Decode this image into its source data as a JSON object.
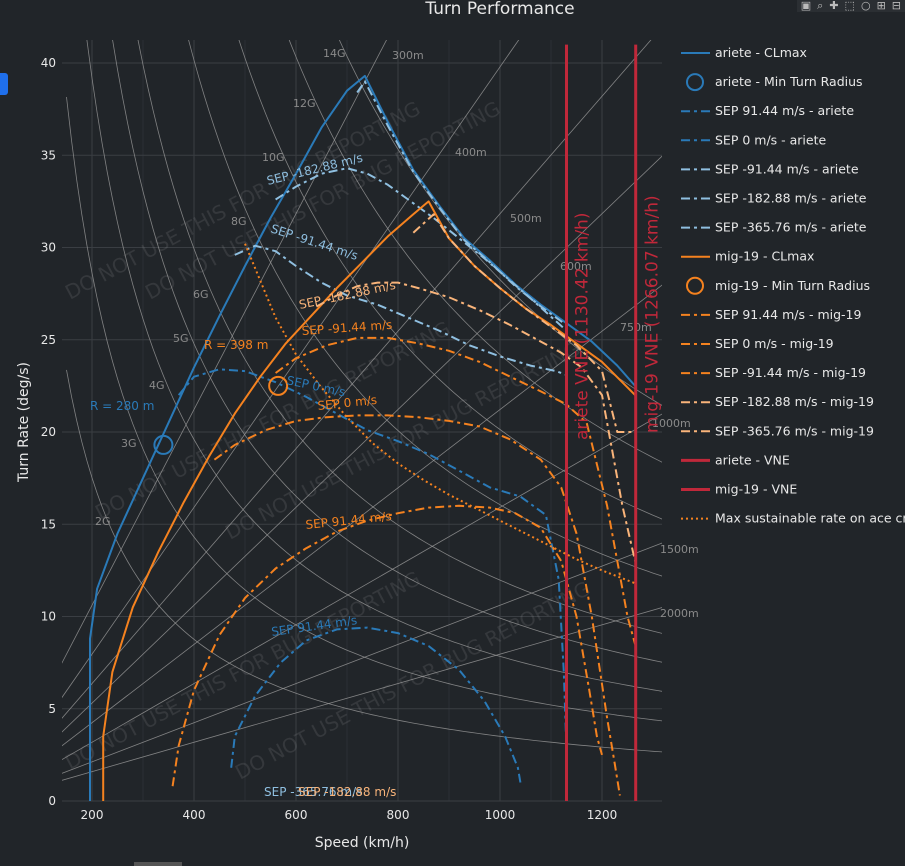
{
  "modebar": {
    "icons": [
      "camera-icon",
      "zoom-icon",
      "pan-icon",
      "select-icon",
      "lasso-icon",
      "zoom-in-icon",
      "zoom-out-icon"
    ]
  },
  "colors": {
    "ariete": "#2a7ab8",
    "ariete_light": "#8fbfe0",
    "mig19": "#f5821f",
    "mig19_light": "#f9b47a",
    "vne": "#c0283a",
    "grid": "#3a3e43",
    "bg": "#212529",
    "text": "#e8e8e8",
    "watermark": "rgba(255,255,255,0.09)",
    "radial": "#9a9a9a"
  },
  "chart_data": {
    "type": "line",
    "title": "Turn Performance",
    "xlabel": "Speed (km/h)",
    "ylabel": "Turn Rate (deg/s)",
    "xlim": [
      150,
      1320
    ],
    "ylim": [
      0,
      41
    ],
    "xticks": [
      200,
      400,
      600,
      800,
      1000,
      1200
    ],
    "yticks": [
      0,
      5,
      10,
      15,
      20,
      25,
      30,
      35,
      40
    ],
    "grid": true,
    "legend_position": "right",
    "watermark": "DO NOT USE THIS FOR BUG REPORTING",
    "g_lines": [
      {
        "label": "2G",
        "g": 2
      },
      {
        "label": "3G",
        "g": 3
      },
      {
        "label": "4G",
        "g": 4
      },
      {
        "label": "5G",
        "g": 5
      },
      {
        "label": "6G",
        "g": 6
      },
      {
        "label": "8G",
        "g": 8
      },
      {
        "label": "10G",
        "g": 10
      },
      {
        "label": "12G",
        "g": 12
      },
      {
        "label": "14G",
        "g": 14
      }
    ],
    "radius_lines": [
      {
        "label": "300m",
        "r": 300
      },
      {
        "label": "400m",
        "r": 400
      },
      {
        "label": "500m",
        "r": 500
      },
      {
        "label": "600m",
        "r": 600
      },
      {
        "label": "750m",
        "r": 750
      },
      {
        "label": "1000m",
        "r": 1000
      },
      {
        "label": "1500m",
        "r": 1500
      },
      {
        "label": "2000m",
        "r": 2000
      }
    ],
    "series": [
      {
        "name": "ariete - CLmax",
        "color_key": "ariete",
        "dash": "solid",
        "x": [
          196,
          196,
          210,
          250,
          300,
          350,
          400,
          450,
          500,
          550,
          600,
          650,
          700,
          735,
          780,
          830,
          880,
          930,
          980,
          1030,
          1080,
          1130,
          1180,
          1230,
          1265
        ],
        "y": [
          0,
          8.8,
          11.5,
          14.5,
          17.5,
          20.5,
          23.5,
          26.3,
          29.0,
          31.6,
          34.0,
          36.5,
          38.5,
          39.3,
          36.8,
          34.2,
          32.3,
          30.5,
          29.3,
          28.0,
          26.9,
          25.9,
          24.9,
          23.6,
          22.5
        ]
      },
      {
        "name": "ariete - Min Turn Radius",
        "color_key": "ariete",
        "marker": "circle",
        "x": [
          340
        ],
        "y": [
          19.3
        ],
        "annotation": "R = 280 m"
      },
      {
        "name": "SEP 91.44 m/s - ariete",
        "color_key": "ariete",
        "dash": "dashdot",
        "x": [
          473,
          480,
          520,
          570,
          620,
          680,
          740,
          800,
          860,
          920,
          970,
          1010,
          1035,
          1040
        ],
        "y": [
          1.8,
          3.5,
          5.7,
          7.5,
          8.7,
          9.3,
          9.4,
          9.1,
          8.4,
          7.1,
          5.4,
          3.5,
          1.8,
          1.0
        ],
        "label": "SEP 91.44 m/s"
      },
      {
        "name": "SEP 0 m/s - ariete",
        "color_key": "ariete",
        "dash": "dashdot",
        "x": [
          370,
          400,
          450,
          500,
          560,
          620,
          680,
          740,
          800,
          860,
          920,
          980,
          1040,
          1090,
          1115,
          1125,
          1130,
          1131
        ],
        "y": [
          22.0,
          23.0,
          23.4,
          23.3,
          22.7,
          21.9,
          21.0,
          20.1,
          19.5,
          18.8,
          17.9,
          17.0,
          16.5,
          15.5,
          12.0,
          7.0,
          3.0,
          1.0
        ],
        "label": "SEP 0 m/s"
      },
      {
        "name": "SEP -91.44 m/s - ariete",
        "color_key": "ariete_light",
        "dash": "dashdot",
        "x": [
          480,
          520,
          560,
          600,
          650,
          700,
          760,
          820,
          880,
          940,
          1000,
          1060,
          1110,
          1130
        ],
        "y": [
          29.6,
          30.1,
          29.8,
          29.0,
          28.1,
          27.4,
          26.9,
          26.2,
          25.5,
          24.7,
          24.1,
          23.6,
          23.3,
          23.1
        ],
        "label": "SEP -91.44 m/s"
      },
      {
        "name": "SEP -182.88 m/s - ariete",
        "color_key": "ariete_light",
        "dash": "dashdot",
        "x": [
          560,
          600,
          650,
          700,
          740,
          780,
          820,
          870,
          920,
          970,
          1020,
          1070,
          1110,
          1130
        ],
        "y": [
          32.6,
          33.3,
          34.0,
          34.3,
          34.0,
          33.4,
          32.6,
          31.6,
          30.5,
          29.4,
          28.2,
          27.0,
          26.0,
          25.5
        ],
        "label": "SEP -182.88 m/s"
      },
      {
        "name": "SEP -365.76 m/s - ariete",
        "color_key": "ariete_light",
        "dash": "dashdot",
        "x": [
          720,
          735,
          780,
          830,
          880,
          930,
          980,
          1030,
          1080,
          1130
        ],
        "y": [
          38.4,
          39.0,
          36.6,
          34.1,
          32.2,
          30.4,
          29.2,
          27.9,
          26.8,
          25.8
        ],
        "label": "SEP -365.76 m/s"
      },
      {
        "name": "mig-19 - CLmax",
        "color_key": "mig19",
        "dash": "solid",
        "x": [
          222,
          222,
          240,
          280,
          330,
          380,
          430,
          480,
          530,
          580,
          630,
          680,
          730,
          780,
          830,
          860,
          900,
          950,
          1000,
          1050,
          1100,
          1150,
          1200,
          1265
        ],
        "y": [
          0,
          3.5,
          7.0,
          10.5,
          13.5,
          16.2,
          18.7,
          21.0,
          23.0,
          24.8,
          26.3,
          27.8,
          29.2,
          30.6,
          31.8,
          32.5,
          30.5,
          29.0,
          27.8,
          26.7,
          25.8,
          24.8,
          23.8,
          22.0
        ]
      },
      {
        "name": "mig-19 - Min Turn Radius",
        "color_key": "mig19",
        "marker": "circle",
        "x": [
          565
        ],
        "y": [
          22.5
        ],
        "annotation": "R = 398 m"
      },
      {
        "name": "SEP 91.44 m/s - mig-19",
        "color_key": "mig19",
        "dash": "dashdot",
        "x": [
          358,
          370,
          400,
          450,
          500,
          560,
          620,
          680,
          740,
          800,
          860,
          920,
          980,
          1030,
          1080,
          1120,
          1150,
          1175,
          1190,
          1200
        ],
        "y": [
          0.8,
          3.0,
          6.0,
          9.0,
          11.0,
          12.6,
          13.7,
          14.6,
          15.2,
          15.6,
          15.9,
          16.0,
          15.9,
          15.6,
          14.8,
          13.0,
          10.0,
          6.0,
          3.5,
          2.5
        ],
        "label": "SEP 91.44 m/s"
      },
      {
        "name": "SEP 0 m/s - mig-19",
        "color_key": "mig19",
        "dash": "dashdot",
        "x": [
          440,
          480,
          540,
          600,
          660,
          720,
          780,
          840,
          900,
          960,
          1020,
          1080,
          1120,
          1150,
          1180,
          1210,
          1225,
          1235
        ],
        "y": [
          18.5,
          19.3,
          20.1,
          20.6,
          20.8,
          20.9,
          20.9,
          20.8,
          20.6,
          20.3,
          19.6,
          18.5,
          17.0,
          14.5,
          10.0,
          4.5,
          2.0,
          0.3
        ],
        "label": "SEP 0 m/s"
      },
      {
        "name": "SEP -91.44 m/s - mig-19",
        "color_key": "mig19",
        "dash": "dashdot",
        "x": [
          560,
          600,
          660,
          720,
          780,
          840,
          900,
          960,
          1020,
          1080,
          1130,
          1170,
          1210,
          1250,
          1265
        ],
        "y": [
          23.2,
          24.0,
          24.7,
          25.1,
          25.1,
          24.8,
          24.4,
          23.8,
          23.0,
          22.2,
          21.5,
          20.5,
          16.0,
          10.0,
          8.5
        ],
        "label": "SEP -91.44 m/s"
      },
      {
        "name": "SEP -182.88 m/s - mig-19",
        "color_key": "mig19_light",
        "dash": "dashdot",
        "x": [
          640,
          680,
          720,
          760,
          800,
          840,
          900,
          960,
          1020,
          1080,
          1120,
          1160,
          1200,
          1240,
          1265
        ],
        "y": [
          26.8,
          27.4,
          27.9,
          28.1,
          28.1,
          27.8,
          27.3,
          26.6,
          25.8,
          24.9,
          24.3,
          23.5,
          22.0,
          16.0,
          13.0
        ],
        "label": "SEP -182.88 m/s"
      },
      {
        "name": "SEP -365.76 m/s - mig-19",
        "color_key": "mig19_light",
        "dash": "dashdot",
        "x": [
          830,
          870,
          900,
          950,
          1000,
          1050,
          1100,
          1150,
          1200,
          1230,
          1265
        ],
        "y": [
          30.8,
          31.8,
          30.5,
          29.0,
          27.8,
          26.7,
          25.7,
          24.7,
          23.3,
          20.0,
          20.0
        ],
        "label": "SEP -365.76 m/s"
      },
      {
        "name": "ariete - VNE",
        "color_key": "vne",
        "dash": "solid",
        "x": [
          1130.42,
          1130.42
        ],
        "y": [
          0,
          41
        ],
        "label": "ariete VNE (1130.42 km/h)"
      },
      {
        "name": "mig-19 - VNE",
        "color_key": "vne",
        "dash": "solid",
        "x": [
          1266.07,
          1266.07
        ],
        "y": [
          0,
          41
        ],
        "label": "mig-19 VNE (1266.07 km/h)"
      },
      {
        "name": "Max sustainable rate on ace crew",
        "color_key": "mig19",
        "dash": "dot",
        "x": [
          500,
          530,
          560,
          600,
          650,
          700,
          750,
          800,
          850,
          900,
          950,
          1000,
          1050,
          1100,
          1150,
          1200,
          1265
        ],
        "y": [
          30.2,
          28.2,
          26.2,
          24.2,
          22.4,
          20.8,
          19.4,
          18.3,
          17.4,
          16.6,
          15.9,
          15.2,
          14.5,
          13.8,
          13.1,
          12.5,
          11.8
        ]
      }
    ],
    "sep_bottom_labels": [
      "SEP -365.76 m/s",
      "SEP -182.88 m/s"
    ]
  },
  "legend": [
    {
      "label": "ariete - CLmax",
      "color_key": "ariete",
      "style": "solid"
    },
    {
      "label": "ariete - Min Turn Radius",
      "color_key": "ariete",
      "style": "circle"
    },
    {
      "label": "SEP 91.44 m/s - ariete",
      "color_key": "ariete",
      "style": "dashdot"
    },
    {
      "label": "SEP 0 m/s - ariete",
      "color_key": "ariete",
      "style": "dashdot"
    },
    {
      "label": "SEP -91.44 m/s - ariete",
      "color_key": "ariete_light",
      "style": "dashdot"
    },
    {
      "label": "SEP -182.88 m/s - ariete",
      "color_key": "ariete_light",
      "style": "dashdot"
    },
    {
      "label": "SEP -365.76 m/s - ariete",
      "color_key": "ariete_light",
      "style": "dashdot"
    },
    {
      "label": "mig-19 - CLmax",
      "color_key": "mig19",
      "style": "solid"
    },
    {
      "label": "mig-19 - Min Turn Radius",
      "color_key": "mig19",
      "style": "circle"
    },
    {
      "label": "SEP 91.44 m/s - mig-19",
      "color_key": "mig19",
      "style": "dashdot"
    },
    {
      "label": "SEP 0 m/s - mig-19",
      "color_key": "mig19",
      "style": "dashdot"
    },
    {
      "label": "SEP -91.44 m/s - mig-19",
      "color_key": "mig19",
      "style": "dashdot"
    },
    {
      "label": "SEP -182.88 m/s - mig-19",
      "color_key": "mig19_light",
      "style": "dashdot"
    },
    {
      "label": "SEP -365.76 m/s - mig-19",
      "color_key": "mig19_light",
      "style": "dashdot"
    },
    {
      "label": "ariete - VNE",
      "color_key": "vne",
      "style": "solid"
    },
    {
      "label": "mig-19 - VNE",
      "color_key": "vne",
      "style": "solid"
    },
    {
      "label": "Max sustainable rate on ace cr",
      "color_key": "mig19",
      "style": "dot"
    }
  ]
}
